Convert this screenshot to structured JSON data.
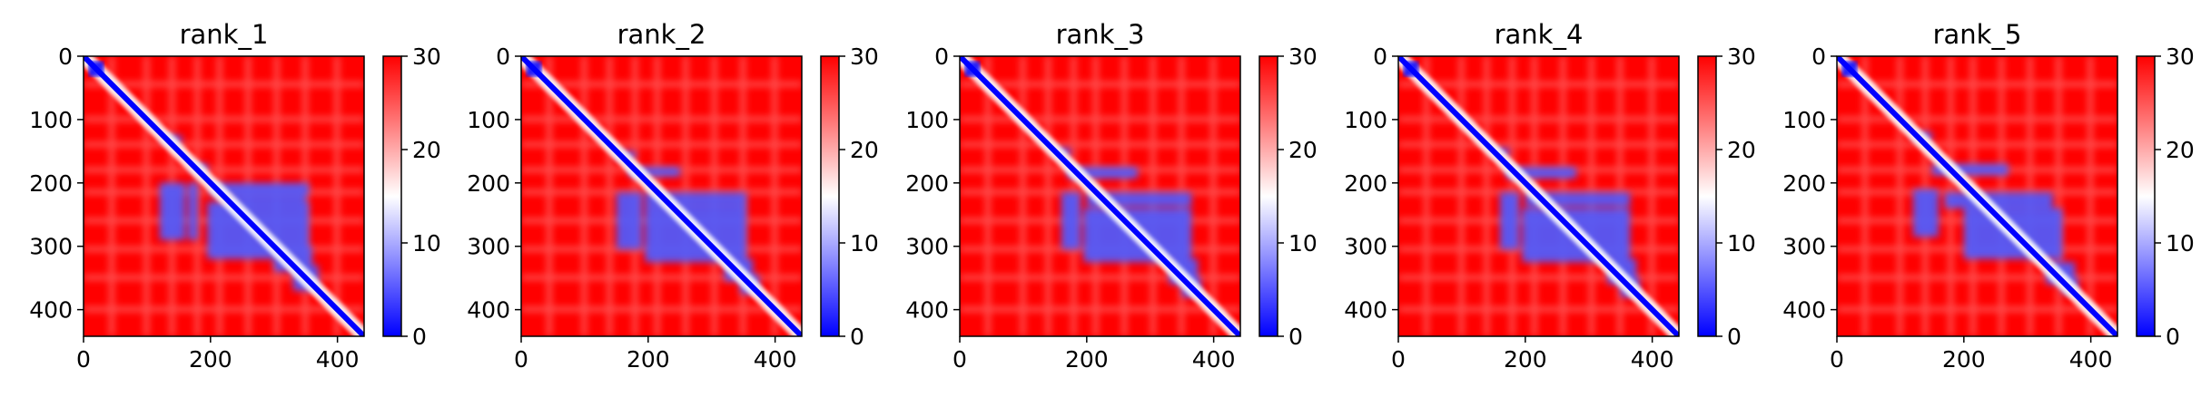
{
  "chart_data": [
    {
      "type": "heatmap",
      "title": "rank_1",
      "variant": 1,
      "x_ticks": [
        "0",
        "200",
        "400"
      ],
      "y_ticks": [
        "0",
        "100",
        "200",
        "300",
        "400"
      ],
      "xlim": [
        0,
        442
      ],
      "ylim": [
        442,
        0
      ],
      "clim": [
        0,
        30
      ],
      "colormap": "bwr",
      "colorbar_ticks": [
        "0",
        "10",
        "20",
        "30"
      ]
    },
    {
      "type": "heatmap",
      "title": "rank_2",
      "variant": 2,
      "x_ticks": [
        "0",
        "200",
        "400"
      ],
      "y_ticks": [
        "0",
        "100",
        "200",
        "300",
        "400"
      ],
      "xlim": [
        0,
        442
      ],
      "ylim": [
        442,
        0
      ],
      "clim": [
        0,
        30
      ],
      "colormap": "bwr",
      "colorbar_ticks": [
        "0",
        "10",
        "20",
        "30"
      ]
    },
    {
      "type": "heatmap",
      "title": "rank_3",
      "variant": 3,
      "x_ticks": [
        "0",
        "200",
        "400"
      ],
      "y_ticks": [
        "0",
        "100",
        "200",
        "300",
        "400"
      ],
      "xlim": [
        0,
        442
      ],
      "ylim": [
        442,
        0
      ],
      "clim": [
        0,
        30
      ],
      "colormap": "bwr",
      "colorbar_ticks": [
        "0",
        "10",
        "20",
        "30"
      ]
    },
    {
      "type": "heatmap",
      "title": "rank_4",
      "variant": 3,
      "x_ticks": [
        "0",
        "200",
        "400"
      ],
      "y_ticks": [
        "0",
        "100",
        "200",
        "300",
        "400"
      ],
      "xlim": [
        0,
        442
      ],
      "ylim": [
        442,
        0
      ],
      "clim": [
        0,
        30
      ],
      "colormap": "bwr",
      "colorbar_ticks": [
        "0",
        "10",
        "20",
        "30"
      ]
    },
    {
      "type": "heatmap",
      "title": "rank_5",
      "variant": 4,
      "x_ticks": [
        "0",
        "200",
        "400"
      ],
      "y_ticks": [
        "0",
        "100",
        "200",
        "300",
        "400"
      ],
      "xlim": [
        0,
        442
      ],
      "ylim": [
        442,
        0
      ],
      "clim": [
        0,
        30
      ],
      "colormap": "bwr",
      "colorbar_ticks": [
        "0",
        "10",
        "20",
        "30"
      ]
    }
  ]
}
